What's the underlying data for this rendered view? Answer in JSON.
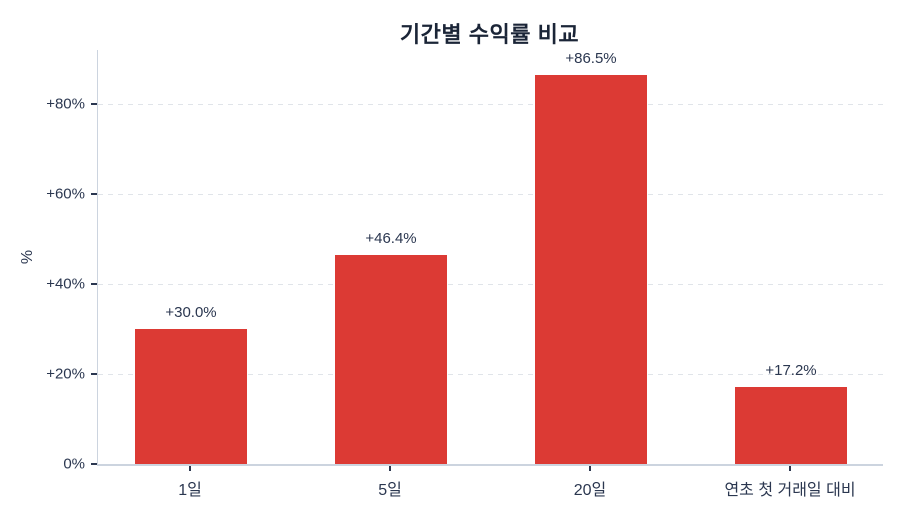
{
  "title": "기간별 수익률 비교",
  "ylabel": "%",
  "colors": {
    "bar": "#dc3a34",
    "title_text": "#1b2537",
    "tick_text": "#2b3750",
    "spine": "#ccd4df",
    "grid": "#e0e4e9",
    "tick_mark": "#2b3750",
    "background": "#ffffff"
  },
  "chart_data": {
    "type": "bar",
    "title": "기간별 수익률 비교",
    "xlabel": "",
    "ylabel": "%",
    "categories": [
      "1일",
      "5일",
      "20일",
      "연초 첫 거래일 대비"
    ],
    "values": [
      30.0,
      46.4,
      86.5,
      17.2
    ],
    "bar_labels": [
      "+30.0%",
      "+46.4%",
      "+86.5%",
      "+17.2%"
    ],
    "yticks": [
      0,
      20,
      40,
      60,
      80
    ],
    "ytick_labels": [
      "0%",
      "+20%",
      "+40%",
      "+60%",
      "+80%"
    ],
    "ylim": [
      0,
      92
    ],
    "grid": "horizontal-dashed",
    "legend_position": "none",
    "bar_color": "#dc3a34"
  }
}
